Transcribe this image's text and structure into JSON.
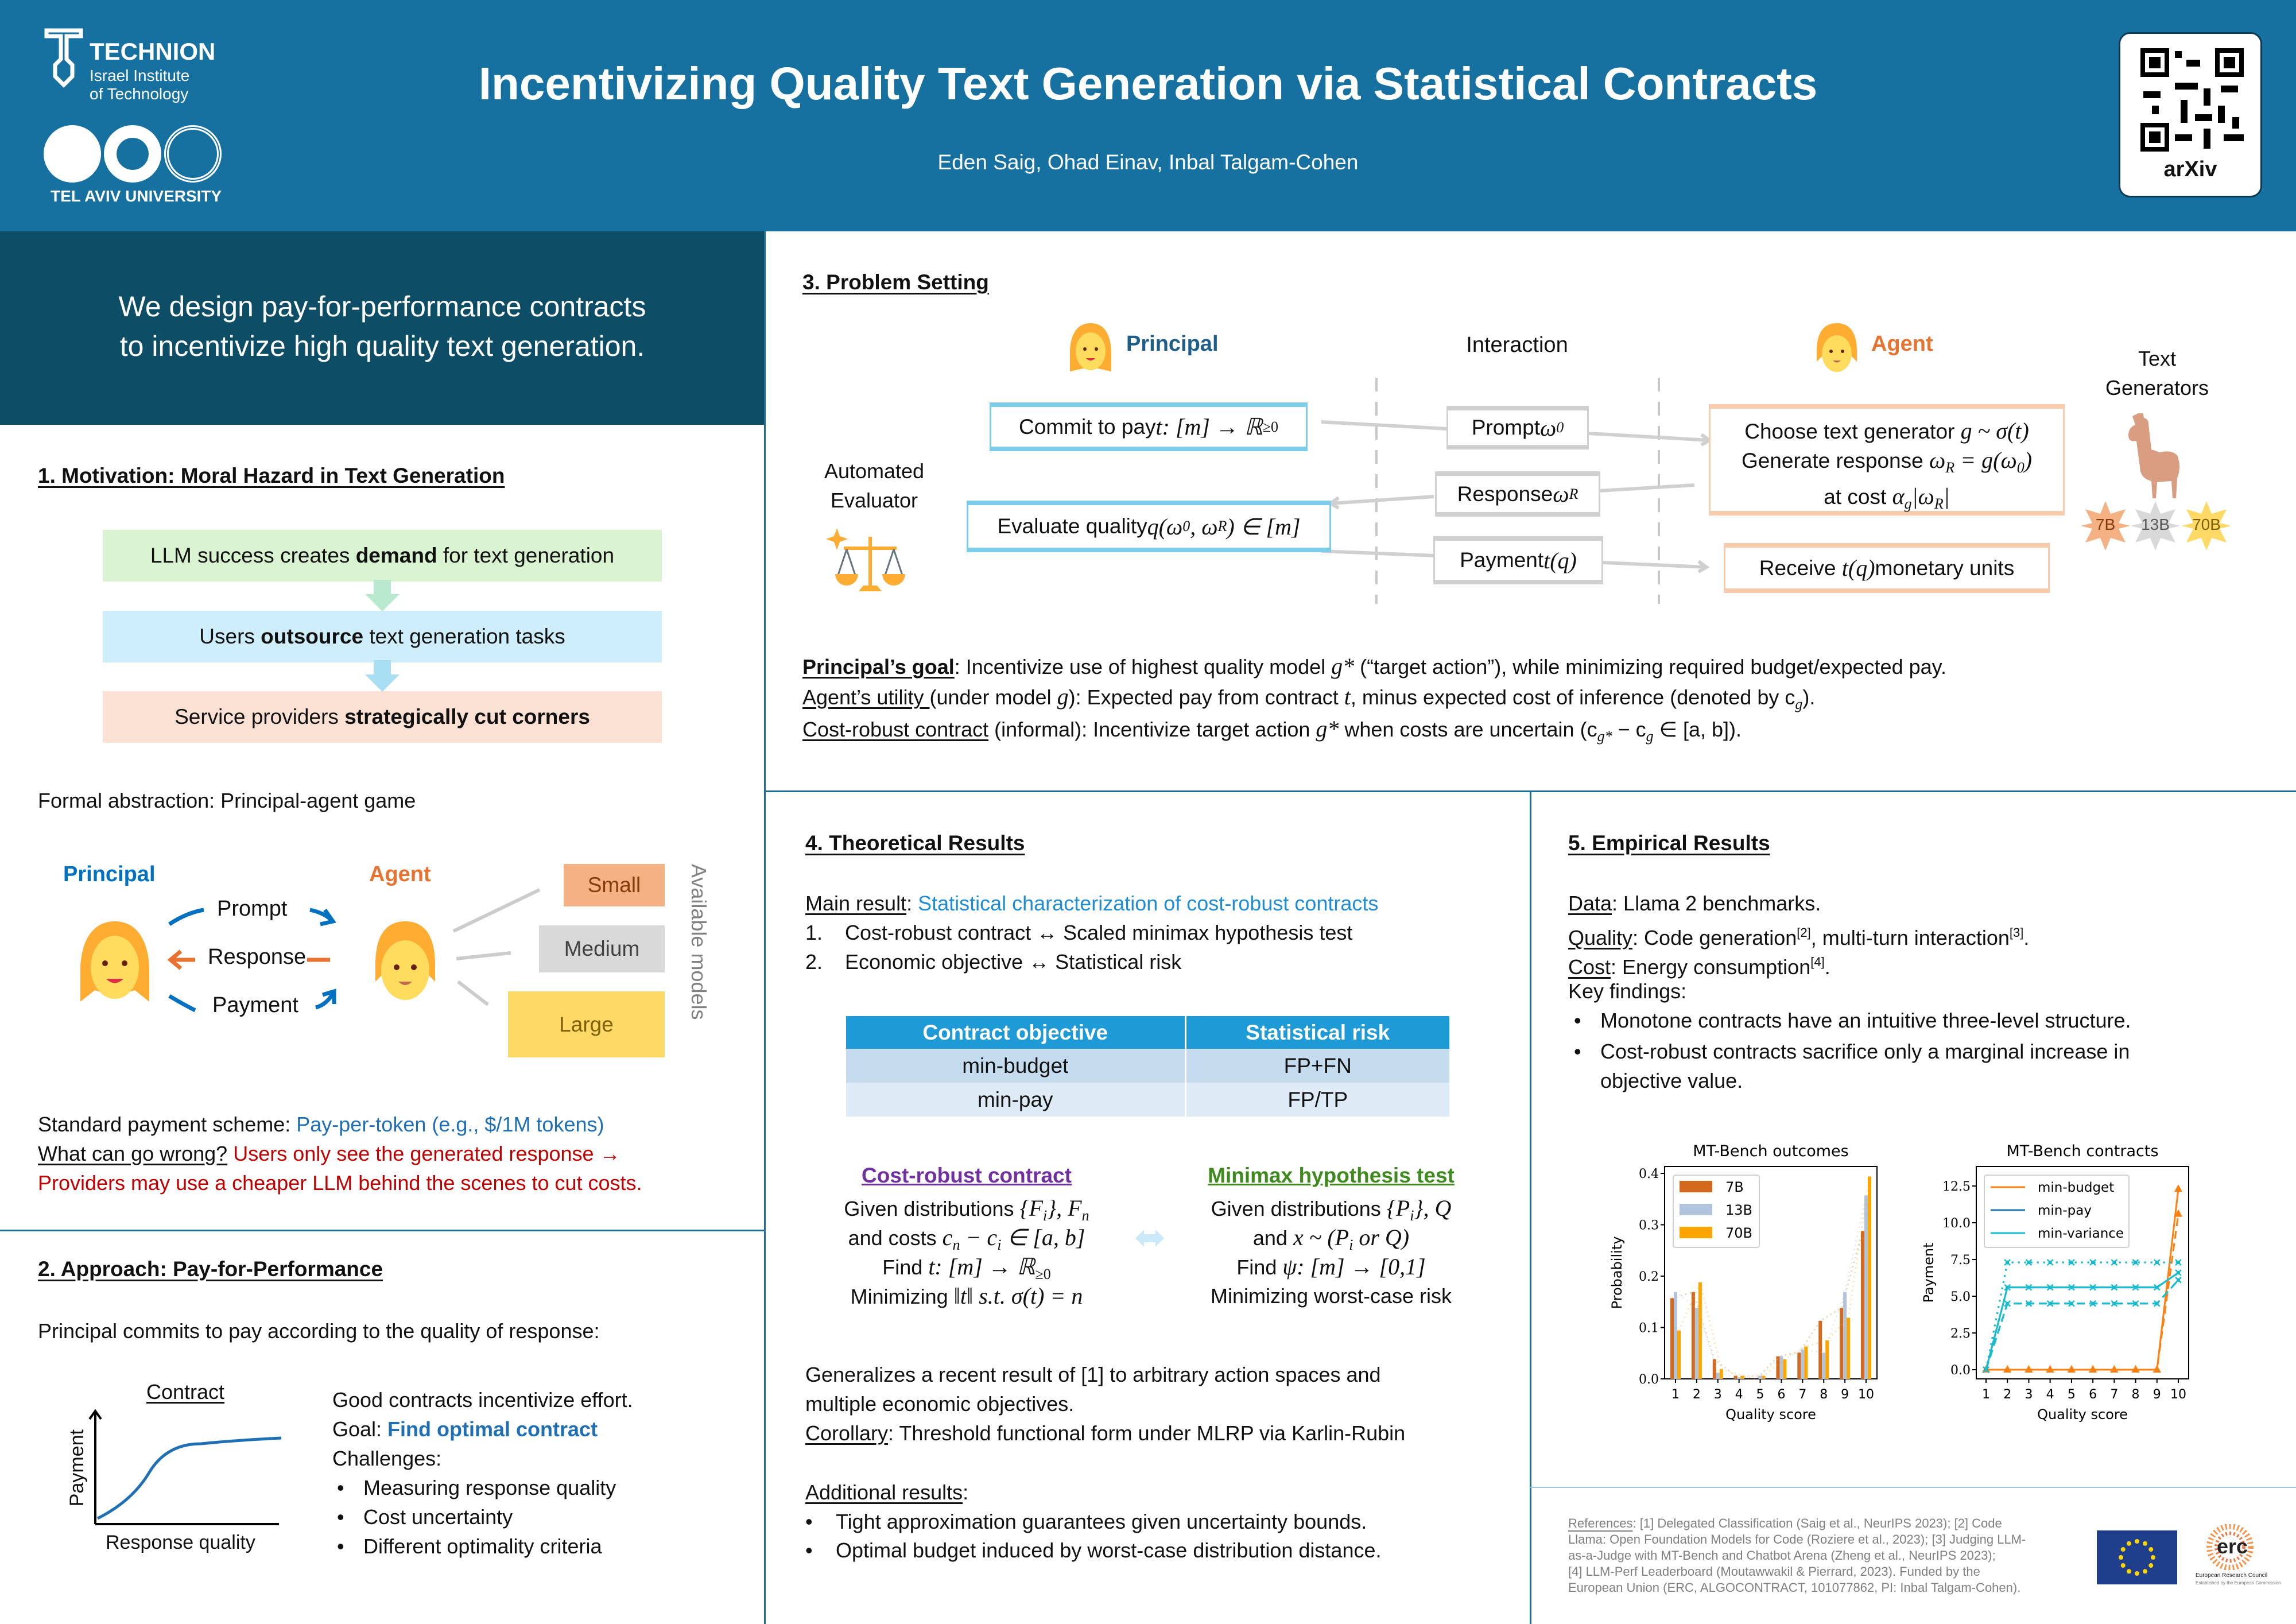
{
  "header": {
    "title": "Incentivizing Quality Text Generation via Statistical Contracts",
    "authors": "Eden Saig, Ohad Einav, Inbal Talgam-Cohen",
    "technion": "TECHNION",
    "technion_sub1": "Israel Institute",
    "technion_sub2": "of Technology",
    "tau": "TEL AVIV UNIVERSITY",
    "qr_label": "arXiv",
    "bg_color": "#1670a0"
  },
  "tagline": [
    "We design pay-for-performance contracts",
    "to incentivize high quality text generation."
  ],
  "motivation": {
    "heading": "1. Motivation: Moral Hazard in Text Generation",
    "flow": [
      {
        "pre": "LLM success creates ",
        "bold": "demand",
        "post": " for text generation"
      },
      {
        "pre": "Users ",
        "bold": "outsource",
        "post": " text generation tasks"
      },
      {
        "pre": "Service providers ",
        "bold": "strategically cut corners",
        "post": ""
      }
    ],
    "formal": "Formal abstraction: Principal-agent game",
    "diagram": {
      "principal": "Principal",
      "agent": "Agent",
      "prompt": "Prompt",
      "response": "Response",
      "payment": "Payment",
      "models": [
        "Small",
        "Medium",
        "Large"
      ],
      "models_label": "Available models"
    },
    "standard_label": "Standard payment scheme: ",
    "standard_value": "Pay-per-token (e.g., $/1M tokens)",
    "wrong_label": "What can go wrong?",
    "wrong_text": " Users only see the generated response →",
    "wrong_text2": "Providers may use a cheaper LLM behind the scenes to cut costs."
  },
  "approach": {
    "heading": "2. Approach: Pay-for-Performance",
    "intro": "Principal commits to pay according to the quality of response:",
    "plot_title": "Contract",
    "plot_ylabel": "Payment",
    "plot_xlabel": "Response quality",
    "line1": "Good contracts incentivize effort.",
    "goal_label": "Goal: ",
    "goal_value": "Find optimal contract",
    "challenges": "Challenges:",
    "bullets": [
      "Measuring response quality",
      "Cost uncertainty",
      "Different optimality criteria"
    ]
  },
  "problem": {
    "heading": "3. Problem Setting",
    "principal": "Principal",
    "interaction": "Interaction",
    "agent": "Agent",
    "generators": [
      "Text",
      "Generators"
    ],
    "evaluator": [
      "Automated",
      "Evaluator"
    ],
    "commit": [
      "Commit to pay ",
      "t: [m] → ℝ",
      "≥0"
    ],
    "evaluate": [
      "Evaluate quality ",
      "q(ω",
      "0",
      ", ω",
      "R",
      ") ∈ [m]"
    ],
    "prompt": [
      "Prompt ",
      "ω",
      "0"
    ],
    "response": [
      "Response ",
      "ω",
      "R"
    ],
    "payment": [
      "Payment ",
      "t(q)"
    ],
    "choose": [
      "Choose text generator ",
      "g ~ σ(t)"
    ],
    "generate": [
      "Generate response ",
      "ω",
      "R",
      " = g(ω",
      "0",
      ")"
    ],
    "cost": [
      "at cost ",
      "α",
      "g",
      "|ω",
      "R",
      "|"
    ],
    "receive": [
      "Receive ",
      "t(q)",
      " monetary units"
    ],
    "badges": [
      "7B",
      "13B",
      "70B"
    ],
    "goal": [
      "Principal’s goal",
      ": Incentivize use of highest quality model ",
      "g*",
      " (“target action”), while minimizing required budget/expected pay."
    ],
    "utility": [
      "Agent’s utility ",
      "(under model ",
      "g",
      "): Expected pay from contract ",
      "t",
      ", minus expected cost of inference (denoted by c",
      "g",
      ")."
    ],
    "robust": [
      "Cost-robust contract",
      " (informal): Incentivize target action ",
      "g*",
      " when costs are uncertain (c",
      "g*",
      " − c",
      "g",
      " ∈ [a, b])."
    ]
  },
  "theory": {
    "heading": "4. Theoretical Results",
    "main_label": "Main result",
    "main_value": "Statistical characterization of cost-robust contracts",
    "items": [
      [
        "1.",
        "Cost-robust contract ↔ Scaled minimax hypothesis test"
      ],
      [
        "2.",
        "Economic objective ↔ Statistical risk"
      ]
    ],
    "table": {
      "headers": [
        "Contract objective",
        "Statistical risk"
      ],
      "rows": [
        [
          "min-budget",
          "FP+FN"
        ],
        [
          "min-pay",
          "FP/TP"
        ]
      ]
    },
    "left_title": "Cost-robust contract",
    "right_title": "Minimax hypothesis test",
    "left": [
      [
        "Given distributions ",
        "{F",
        "i",
        "}, F",
        "n"
      ],
      [
        "and costs ",
        "c",
        "n",
        " − c",
        "i",
        " ∈ [a, b]"
      ],
      [
        "Find ",
        "t: [m] → ℝ",
        "≥0"
      ],
      [
        "Minimizing ",
        "‖t‖ s.t. σ(t) = n"
      ]
    ],
    "right": [
      [
        "Given distributions ",
        "{P",
        "i",
        "}, Q"
      ],
      [
        "and ",
        "x ~ (P",
        "i",
        " or Q)"
      ],
      [
        "Find ",
        "ψ: [m] → [0,1]"
      ],
      [
        "Minimizing worst-case risk"
      ]
    ],
    "general": [
      "Generalizes a recent result of [1] to arbitrary action spaces and",
      "multiple economic objectives."
    ],
    "corollary_label": "Corollary",
    "corollary": ": Threshold functional form under MLRP via Karlin-Rubin",
    "additional": "Additional results",
    "bullets": [
      "Tight approximation guarantees given uncertainty bounds.",
      "Optimal budget induced by worst-case distribution distance."
    ]
  },
  "empirical": {
    "heading": "5. Empirical Results",
    "data_label": "Data",
    "data": ": Llama 2 benchmarks.",
    "quality_label": "Quality",
    "quality": [
      ": Code generation",
      "[2]",
      ", multi-turn interaction",
      "[3]",
      "."
    ],
    "cost_label": "Cost",
    "cost": [
      ": Energy consumption",
      "[4]",
      "."
    ],
    "findings": "Key findings:",
    "bullets": [
      "Monotone contracts have an intuitive three-level structure.",
      "Cost-robust contracts sacrifice only a marginal increase in",
      "objective value."
    ]
  },
  "chart_data": [
    {
      "type": "bar",
      "title": "MT-Bench outcomes",
      "xlabel": "Quality score",
      "ylabel": "Probability",
      "categories": [
        "1",
        "2",
        "3",
        "4",
        "5",
        "6",
        "7",
        "8",
        "9",
        "10"
      ],
      "ylim": [
        0,
        0.41
      ],
      "yticks": [
        "0.0",
        "0.1",
        "0.2",
        "0.3",
        "0.4"
      ],
      "legend": "top-left",
      "grid": false,
      "series": [
        {
          "name": "7B",
          "color": "#d2691e",
          "values": [
            0.157,
            0.169,
            0.038,
            0.006,
            0.0,
            0.044,
            0.051,
            0.113,
            0.138,
            0.288
          ]
        },
        {
          "name": "13B",
          "color": "#b0c4de",
          "values": [
            0.169,
            0.138,
            0.012,
            0.003,
            0.006,
            0.044,
            0.057,
            0.051,
            0.169,
            0.357
          ]
        },
        {
          "name": "70B",
          "color": "#ffa500",
          "values": [
            0.094,
            0.188,
            0.019,
            0.006,
            0.006,
            0.038,
            0.063,
            0.075,
            0.119,
            0.394
          ]
        }
      ]
    },
    {
      "type": "line",
      "title": "MT-Bench contracts",
      "xlabel": "Quality score",
      "ylabel": "Payment",
      "categories": [
        "1",
        "2",
        "3",
        "4",
        "5",
        "6",
        "7",
        "8",
        "9",
        "10"
      ],
      "ylim": [
        -0.6,
        13.8
      ],
      "yticks": [
        "0.0",
        "2.5",
        "5.0",
        "7.5",
        "10.0",
        "12.5"
      ],
      "legend": "top-left",
      "grid": false,
      "series": [
        {
          "name": "min-budget",
          "color": "#ff7f0e",
          "marker": "triangle",
          "variants": [
            {
              "style": "solid",
              "values": [
                0,
                0,
                0,
                0,
                0,
                0,
                0,
                0,
                0,
                12.3
              ]
            },
            {
              "style": "dashed",
              "values": [
                0,
                0,
                0,
                0,
                0,
                0,
                0,
                0,
                0,
                10.6
              ]
            }
          ]
        },
        {
          "name": "min-pay",
          "color": "#1f77b4",
          "marker": "dot",
          "variants": [
            {
              "style": "solid",
              "values": [
                0,
                5.6,
                5.6,
                5.6,
                5.6,
                5.6,
                5.6,
                5.6,
                5.6,
                6.6
              ]
            },
            {
              "style": "dotted",
              "values": [
                0,
                7.3,
                7.3,
                7.3,
                7.3,
                7.3,
                7.3,
                7.3,
                7.3,
                7.3
              ]
            },
            {
              "style": "dashed",
              "values": [
                0,
                4.5,
                4.5,
                4.5,
                4.5,
                4.5,
                4.5,
                4.5,
                4.5,
                6.1
              ]
            }
          ]
        },
        {
          "name": "min-variance",
          "color": "#17becf",
          "marker": "x",
          "variants": [
            {
              "style": "solid",
              "values": [
                0,
                5.6,
                5.6,
                5.6,
                5.6,
                5.6,
                5.6,
                5.6,
                5.6,
                6.6
              ]
            },
            {
              "style": "dotted",
              "values": [
                0,
                7.3,
                7.3,
                7.3,
                7.3,
                7.3,
                7.3,
                7.3,
                7.3,
                7.3
              ]
            },
            {
              "style": "dashed",
              "values": [
                0,
                4.5,
                4.5,
                4.5,
                4.5,
                4.5,
                4.5,
                4.5,
                4.5,
                6.1
              ]
            }
          ]
        }
      ]
    }
  ],
  "references": {
    "label": "References",
    "lines": [
      ": [1] Delegated Classification (Saig et al., NeurIPS 2023); [2] Code",
      "Llama: Open Foundation Models for Code (Roziere et al., 2023); [3] Judging LLM-",
      "as-a-Judge with MT-Bench and Chatbot Arena (Zheng et al., NeurIPS 2023);",
      "[4] LLM-Perf Leaderboard (Moutawwakil & Pierrard, 2023). Funded by the",
      "European Union (ERC, ALGOCONTRACT, 101077862, PI: Inbal Talgam-Cohen)."
    ],
    "erc": "erc",
    "erc_name": "European Research Council",
    "erc_sub": "Established by the European Commission"
  }
}
